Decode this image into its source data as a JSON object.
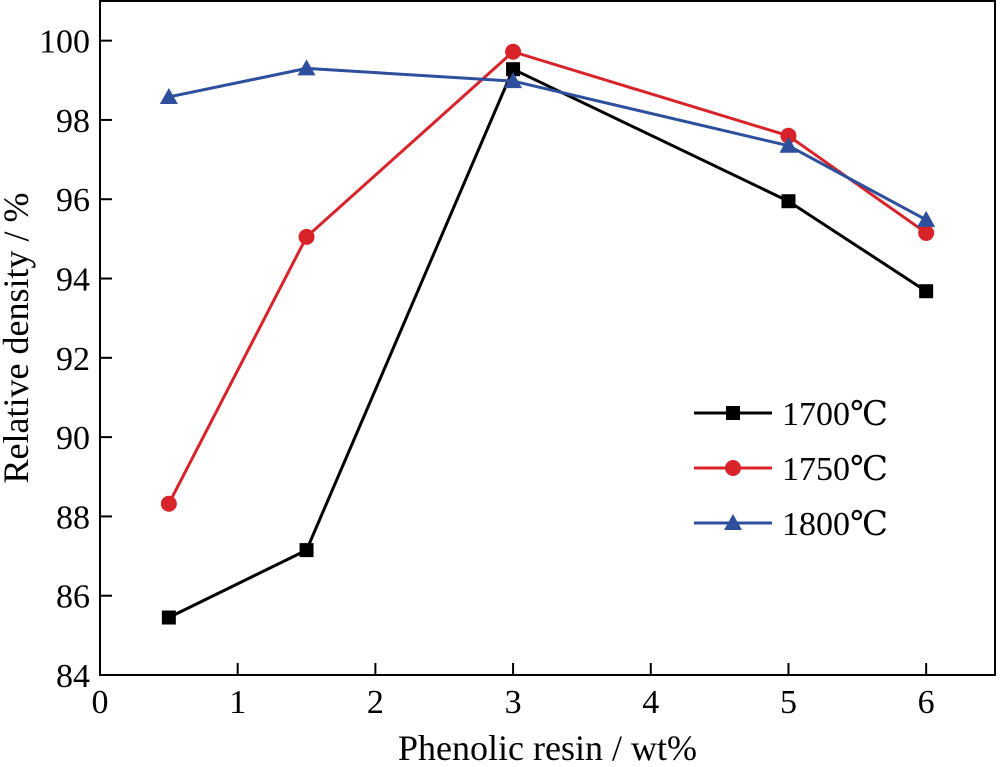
{
  "chart_data": {
    "type": "line",
    "xlabel": "Phenolic resin / wt%",
    "ylabel": "Relative density / %",
    "xlim": [
      0,
      6.5
    ],
    "ylim": [
      84,
      101
    ],
    "xticks": [
      "0",
      "1",
      "2",
      "3",
      "4",
      "5",
      "6"
    ],
    "yticks": [
      "84",
      "86",
      "88",
      "90",
      "92",
      "94",
      "96",
      "98",
      "100"
    ],
    "grid": false,
    "legend_position": "center-right",
    "series": [
      {
        "name": "1700℃",
        "color": "#000000",
        "marker": "square",
        "x": [
          0.5,
          1.5,
          3,
          5,
          6
        ],
        "y": [
          85.45,
          87.15,
          99.28,
          95.95,
          93.68
        ]
      },
      {
        "name": "1750℃",
        "color": "#d8232a",
        "marker": "circle",
        "x": [
          0.5,
          1.5,
          3,
          5,
          6
        ],
        "y": [
          88.32,
          95.05,
          99.72,
          97.6,
          95.15
        ]
      },
      {
        "name": "1800℃",
        "color": "#2e4f9c",
        "marker": "triangle",
        "x": [
          0.5,
          1.5,
          3,
          5,
          6
        ],
        "y": [
          98.58,
          99.3,
          98.98,
          97.35,
          95.48
        ]
      }
    ]
  }
}
